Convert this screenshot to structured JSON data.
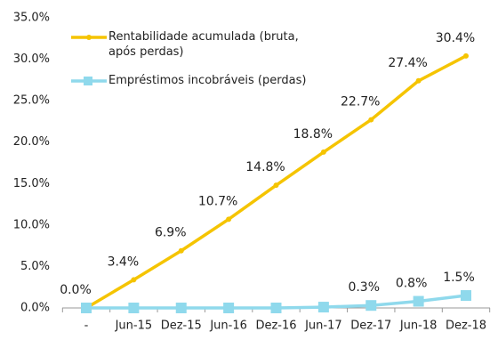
{
  "chart_data": {
    "type": "line",
    "categories": [
      "-",
      "Jun-15",
      "Dez-15",
      "Jun-16",
      "Dez-16",
      "Jun-17",
      "Dez-17",
      "Jun-18",
      "Dez-18"
    ],
    "series": [
      {
        "name": "Rentabilidade acumulada (bruta, após perdas)",
        "color": "#f5c400",
        "marker": "circle",
        "values": [
          0.0,
          3.4,
          6.9,
          10.7,
          14.8,
          18.8,
          22.7,
          27.4,
          30.4
        ],
        "value_labels": [
          "0.0%",
          "3.4%",
          "6.9%",
          "10.7%",
          "14.8%",
          "18.8%",
          "22.7%",
          "27.4%",
          "30.4%"
        ]
      },
      {
        "name": "Empréstimos incobráveis (perdas)",
        "color": "#8fd9ec",
        "marker": "square",
        "values": [
          0,
          0,
          0,
          0,
          0,
          0.1,
          0.3,
          0.8,
          1.5
        ],
        "value_labels": [
          null,
          null,
          null,
          null,
          null,
          null,
          "0.3%",
          "0.8%",
          "1.5%"
        ]
      }
    ],
    "ylim": [
      0,
      35
    ],
    "yticks": [
      {
        "value": 0,
        "label": "0.0%"
      },
      {
        "value": 5,
        "label": "5.0%"
      },
      {
        "value": 10,
        "label": "10.0%"
      },
      {
        "value": 15,
        "label": "15.0%"
      },
      {
        "value": 20,
        "label": "20.0%"
      },
      {
        "value": 25,
        "label": "25.0%"
      },
      {
        "value": 30,
        "label": "30.0%"
      },
      {
        "value": 35,
        "label": "35.0%"
      }
    ],
    "grid": false
  }
}
